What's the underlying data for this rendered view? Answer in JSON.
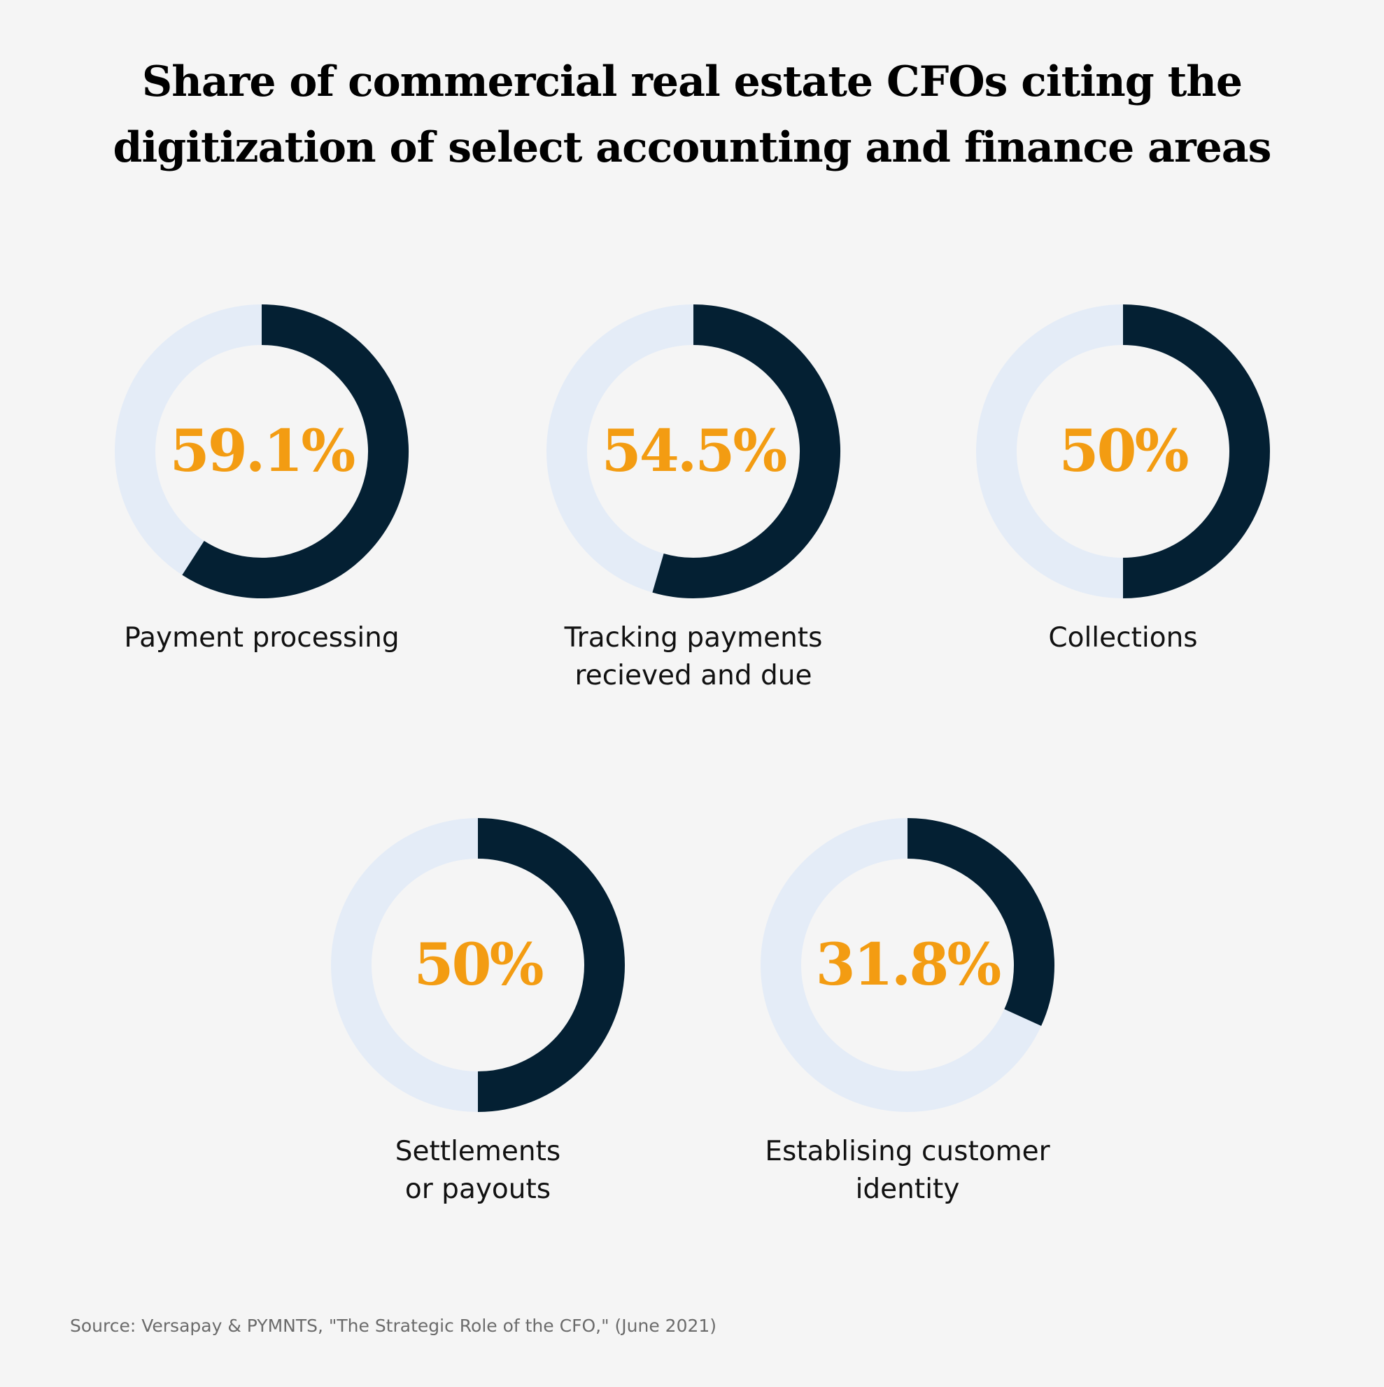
{
  "title": {
    "line1": "Share of commercial real estate CFOs citing the",
    "line2": "digitization of select accounting and finance areas"
  },
  "colors": {
    "background": "#f5f5f5",
    "track": "#e4ecf7",
    "fill": "#042033",
    "value_text": "#f39c12"
  },
  "chart_data": {
    "type": "pie",
    "title": "Share of commercial real estate CFOs citing the digitization of select accounting and finance areas",
    "unit": "%",
    "items": [
      {
        "label_lines": [
          "Payment processing"
        ],
        "value": 59.1,
        "display": "59.1%"
      },
      {
        "label_lines": [
          "Tracking payments",
          "recieved and due"
        ],
        "value": 54.5,
        "display": "54.5%"
      },
      {
        "label_lines": [
          "Collections"
        ],
        "value": 50,
        "display": "50%"
      },
      {
        "label_lines": [
          "Settlements",
          "or payouts"
        ],
        "value": 50,
        "display": "50%"
      },
      {
        "label_lines": [
          "Establising customer",
          "identity"
        ],
        "value": 31.8,
        "display": "31.8%"
      }
    ]
  },
  "source": "Source: Versapay & PYMNTS, \"The Strategic Role of the CFO,\" (June 2021)"
}
